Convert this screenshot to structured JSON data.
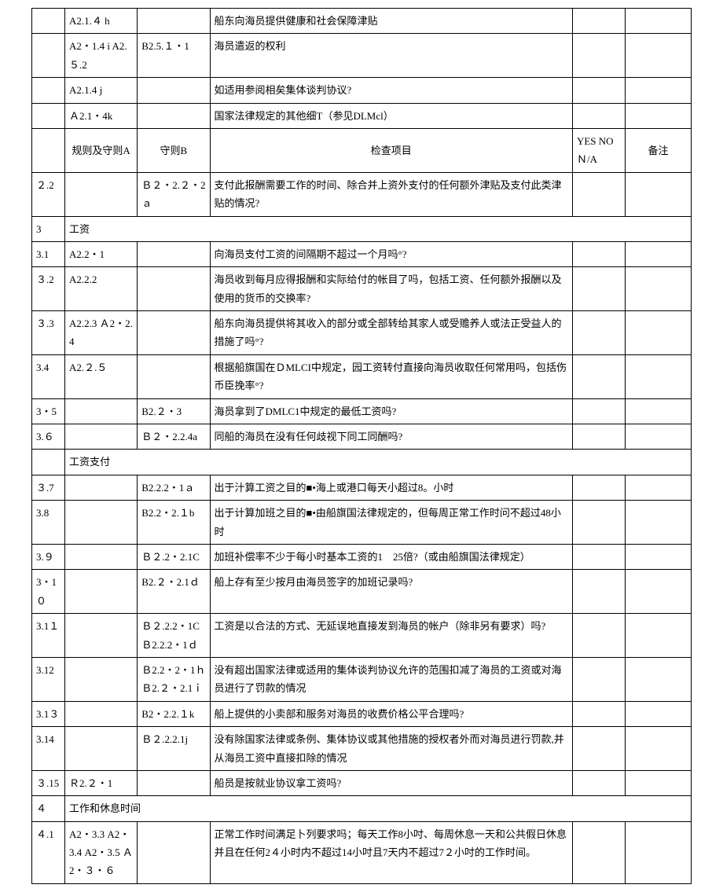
{
  "rows": [
    {
      "c1": "",
      "c2": "A2.1.４ h",
      "c3": "",
      "c4": "船东向海员提供健康和社会保障津贴",
      "c5": "",
      "c6": ""
    },
    {
      "c1": "",
      "c2": "A2・1.4 i A2.５.2",
      "c3": "B2.5.１・1",
      "c4": "海员遣返的权利",
      "c5": "",
      "c6": ""
    },
    {
      "c1": "",
      "c2": "A2.1.4 j",
      "c3": "",
      "c4": "如适用参阅相矣集体谈判协议?",
      "c5": "",
      "c6": ""
    },
    {
      "c1": "",
      "c2": "Ａ2.1・4k",
      "c3": "",
      "c4": "国家法律规定的其他细T（参见DLMcl）",
      "c5": "",
      "c6": ""
    },
    {
      "c1": "",
      "c2": "规则及守则A",
      "c2class": "center",
      "c3": "守则B",
      "c3class": "center",
      "c4": "检查项目",
      "c4class": "center",
      "c5": "YES NO Ｎ/A",
      "c6": "备注",
      "c6class": "center"
    },
    {
      "c1": "２.2",
      "c2": "",
      "c3": "Ｂ２・2.２・2ａ",
      "c4": "支付此报酬需要工作的时间、除合并上资外支付的任何额外津贴及支付此类津贴的情况?",
      "c5": "",
      "c6": ""
    },
    {
      "section": true,
      "c1": "3",
      "rest": "工资"
    },
    {
      "c1": "3.1",
      "c2": "A2.2・1",
      "c3": "",
      "c4": "向海员支付工资的间隔期不超过一个月吗°?",
      "c5": "",
      "c6": ""
    },
    {
      "c1": "３.2",
      "c2": "A2.2.2",
      "c3": "",
      "c4": "海员收到每月应得报酬和实际给付的帐目了吗，包括工资、任何额外报酬以及使用的货币的交换率?",
      "c5": "",
      "c6": ""
    },
    {
      "c1": "３.3",
      "c2": "A2.2.3 Ａ2・2.4",
      "c3": "",
      "c4": "船东向海员提供将其收入的部分或全部转给其家人或受赡养人或法正受益人的措施了吗°?",
      "c5": "",
      "c6": ""
    },
    {
      "c1": "3.4",
      "c2": "A2.２.５",
      "c3": "",
      "c4": "根据船旗国在ＤMLCI中规定，园工资转付直接向海员收取任何常用吗，包括伤币臣挽率°?",
      "c5": "",
      "c6": ""
    },
    {
      "c1": "3・5",
      "c2": "",
      "c3": "B2.２・3",
      "c4": "海员拿到了DMLC1中规定的最低工资吗?",
      "c5": "",
      "c6": ""
    },
    {
      "c1": "3.６",
      "c2": "",
      "c3": "Ｂ２・2.2.4a",
      "c4": "同船的海员在没有任何歧视下同工同酬吗?",
      "c5": "",
      "c6": ""
    },
    {
      "section": true,
      "c1": "",
      "rest": "工资支付"
    },
    {
      "c1": "３.7",
      "c2": "",
      "c3": "B2.2.2・1ａ",
      "c4": "出于汁算工资之目的■•海上或港口每天小超过8。小时",
      "c5": "",
      "c6": ""
    },
    {
      "c1": "3.8",
      "c2": "",
      "c3": "B2.2・2.１b",
      "c4": "出于计算加班之目的■•由船旗国法律规定的，但每周正常工作时问不超过48小时",
      "c5": "",
      "c6": ""
    },
    {
      "c1": "3.９",
      "c2": "",
      "c3": "Ｂ２.2・2.1C",
      "c4": "加班补偿率不少于每小时基本工资的1　25倍?（或由船旗国法律规定）",
      "c5": "",
      "c6": ""
    },
    {
      "c1": "3・1０",
      "c2": "",
      "c3": "B2.２・2.1ｄ",
      "c4": "船上存有至少按月由海员签字的加班记录吗?",
      "c5": "",
      "c6": ""
    },
    {
      "c1": "3.1１",
      "c2": "",
      "c3": "Ｂ２.2.2・1C Ｂ2.2.2・1ｄ",
      "c4": "工资是以合法的方式、无延误地直接发到海员的帐户（除非另有要求）吗?",
      "c5": "",
      "c6": ""
    },
    {
      "c1": "3.12",
      "c2": "",
      "c3": "Ｂ2.2・2・1ｈ Ｂ2.２・2.1ｉ",
      "c4": "没有超出国家法律或适用的集体谈判协议允许的范围扣减了海员的工资或对海员进行了罚款的情况",
      "c5": "",
      "c6": ""
    },
    {
      "c1": "3.1３",
      "c2": "",
      "c3": "B2・2.2.１k",
      "c4": "船上提供的小卖部和服务对海员的收费价格公平合理吗?",
      "c5": "",
      "c6": ""
    },
    {
      "c1": "3.14",
      "c2": "",
      "c3": "Ｂ２.2.2.1j",
      "c4": "没有除国家法律或条例、集体协议或其他措施的授权者外而对海员进行罚款,并从海员工资中直接扣除的情况",
      "c5": "",
      "c6": ""
    },
    {
      "c1": "３.15",
      "c2": "Ｒ2.２・1",
      "c3": "",
      "c4": "船员是按就业协议拿工资吗?",
      "c5": "",
      "c6": ""
    },
    {
      "section": true,
      "c1": "４",
      "rest": "工作和休息时间"
    },
    {
      "c1": "４.1",
      "c2": "A2・3.3 A2・3.4 A2・3.5 Ａ2・３・６",
      "c3": "",
      "c4": "正常工作时间满足卜列要求吗；每天工作8小吋、每周休息一天和公共假日休息并且在任何2４小时内不超过14小吋且7天内不超过7２小吋的工作时间。",
      "c5": "",
      "c6": ""
    }
  ]
}
